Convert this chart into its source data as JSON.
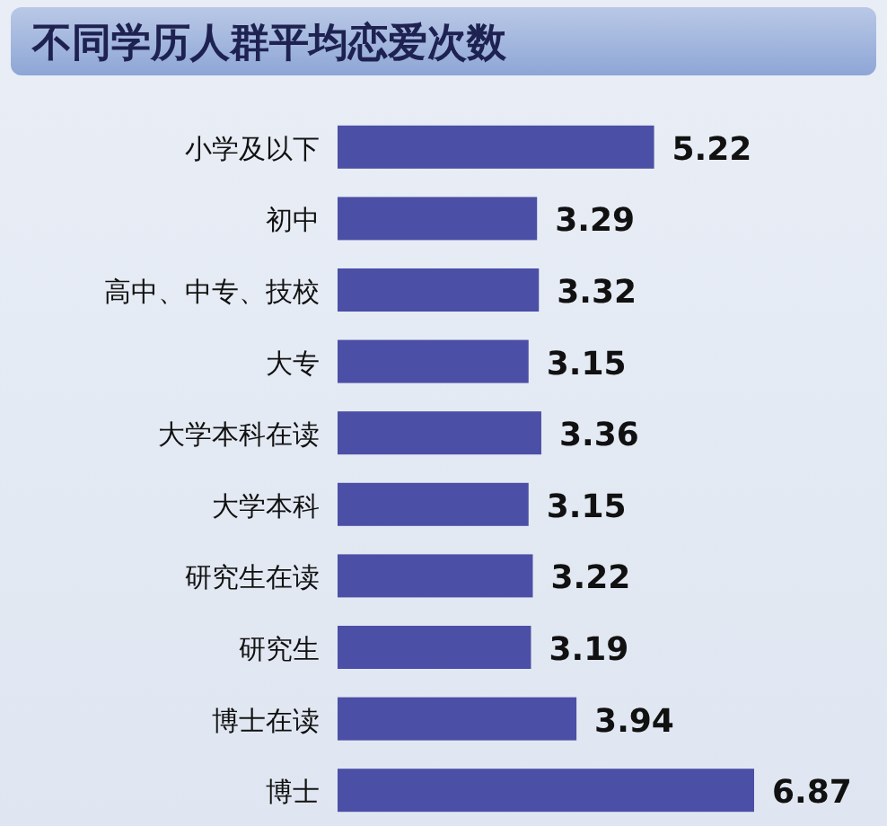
{
  "chart_data": {
    "type": "bar",
    "orientation": "horizontal",
    "title": "不同学历人群平均恋爱次数",
    "categories": [
      "小学及以下",
      "初中",
      "高中、中专、技校",
      "大专",
      "大学本科在读",
      "大学本科",
      "研究生在读",
      "研究生",
      "博士在读",
      "博士"
    ],
    "values": [
      5.22,
      3.29,
      3.32,
      3.15,
      3.36,
      3.15,
      3.22,
      3.19,
      3.94,
      6.87
    ],
    "color": "#4b4fa6",
    "data_labels": true
  }
}
